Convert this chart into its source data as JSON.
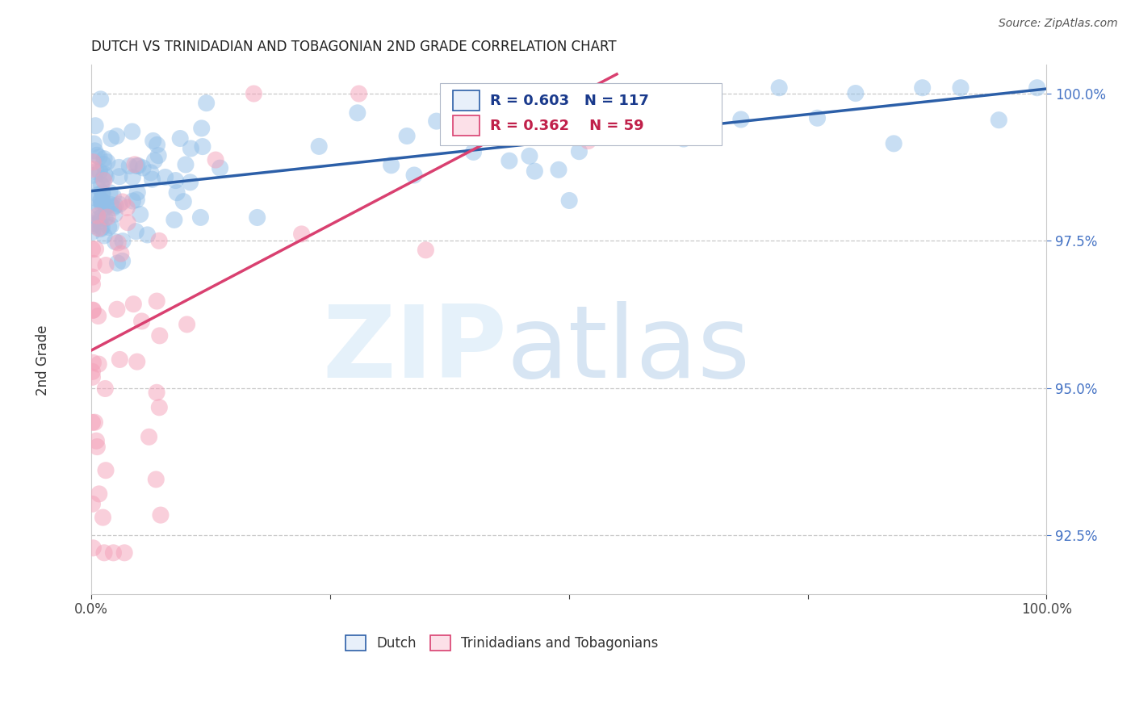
{
  "title": "DUTCH VS TRINIDADIAN AND TOBAGONIAN 2ND GRADE CORRELATION CHART",
  "source_text": "Source: ZipAtlas.com",
  "ylabel": "2nd Grade",
  "xlim": [
    0.0,
    1.0
  ],
  "ylim": [
    0.915,
    1.005
  ],
  "yticks": [
    0.925,
    0.95,
    0.975,
    1.0
  ],
  "ytick_labels": [
    "92.5%",
    "95.0%",
    "97.5%",
    "100.0%"
  ],
  "xticks": [
    0.0,
    0.25,
    0.5,
    0.75,
    1.0
  ],
  "xtick_labels": [
    "0.0%",
    "",
    "",
    "",
    "100.0%"
  ],
  "legend_dutch": "Dutch",
  "legend_trini": "Trinidadians and Tobagonians",
  "R_dutch": "0.603",
  "N_dutch": "117",
  "R_trini": "0.362",
  "N_trini": "59",
  "blue_color": "#92bfe8",
  "pink_color": "#f4a0b8",
  "blue_line_color": "#2c5fa8",
  "pink_line_color": "#d94070",
  "legend_box_color": "#e8f0fa",
  "legend_box_pink": "#fce0e8",
  "blue_text_color": "#1a3a8c",
  "pink_text_color": "#c0204a"
}
